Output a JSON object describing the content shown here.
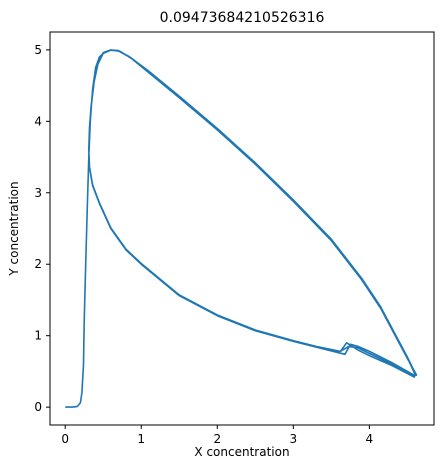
{
  "chart_data": {
    "type": "line",
    "title": "0.09473684210526316",
    "xlabel": "X concentration",
    "ylabel": "Y concentration",
    "xlim": [
      -0.2,
      4.85
    ],
    "ylim": [
      -0.25,
      5.25
    ],
    "x_ticks": [
      0,
      1,
      2,
      3,
      4
    ],
    "y_ticks": [
      0,
      1,
      2,
      3,
      4,
      5
    ],
    "grid": false,
    "legend": "none",
    "series_color": "#1f77b4",
    "series": [
      {
        "name": "",
        "points": [
          [
            0.0,
            0.0
          ],
          [
            0.1,
            0.0
          ],
          [
            0.16,
            0.01
          ],
          [
            0.2,
            0.06
          ],
          [
            0.22,
            0.2
          ],
          [
            0.24,
            0.6
          ],
          [
            0.25,
            1.2
          ],
          [
            0.27,
            2.0
          ],
          [
            0.29,
            2.8
          ],
          [
            0.31,
            3.5
          ],
          [
            0.33,
            4.0
          ],
          [
            0.36,
            4.45
          ],
          [
            0.4,
            4.75
          ],
          [
            0.45,
            4.9
          ],
          [
            0.52,
            4.97
          ],
          [
            0.6,
            5.0
          ],
          [
            0.7,
            4.99
          ],
          [
            0.85,
            4.9
          ],
          [
            1.1,
            4.7
          ],
          [
            1.5,
            4.35
          ],
          [
            2.0,
            3.9
          ],
          [
            2.5,
            3.42
          ],
          [
            3.0,
            2.9
          ],
          [
            3.5,
            2.35
          ],
          [
            3.9,
            1.8
          ],
          [
            4.15,
            1.4
          ],
          [
            4.35,
            1.0
          ],
          [
            4.5,
            0.7
          ],
          [
            4.6,
            0.48
          ],
          [
            4.58,
            0.43
          ],
          [
            4.3,
            0.6
          ],
          [
            4.0,
            0.75
          ],
          [
            3.85,
            0.83
          ],
          [
            3.73,
            0.85
          ],
          [
            3.6,
            0.77
          ],
          [
            3.3,
            0.84
          ],
          [
            3.0,
            0.92
          ],
          [
            2.5,
            1.07
          ],
          [
            2.0,
            1.28
          ],
          [
            1.5,
            1.56
          ],
          [
            1.0,
            2.0
          ],
          [
            0.8,
            2.2
          ],
          [
            0.6,
            2.5
          ],
          [
            0.45,
            2.85
          ],
          [
            0.36,
            3.1
          ],
          [
            0.32,
            3.35
          ],
          [
            0.31,
            3.6
          ],
          [
            0.32,
            3.9
          ],
          [
            0.34,
            4.2
          ],
          [
            0.38,
            4.55
          ],
          [
            0.43,
            4.8
          ],
          [
            0.5,
            4.95
          ],
          [
            0.6,
            4.995
          ],
          [
            0.7,
            4.985
          ],
          [
            0.86,
            4.89
          ],
          [
            1.1,
            4.69
          ],
          [
            1.5,
            4.34
          ],
          [
            2.0,
            3.89
          ],
          [
            2.5,
            3.41
          ],
          [
            3.0,
            2.89
          ],
          [
            3.5,
            2.34
          ],
          [
            3.9,
            1.79
          ],
          [
            4.15,
            1.39
          ],
          [
            4.35,
            0.99
          ],
          [
            4.5,
            0.69
          ],
          [
            4.6,
            0.46
          ],
          [
            4.59,
            0.42
          ],
          [
            4.3,
            0.58
          ],
          [
            4.0,
            0.72
          ],
          [
            3.85,
            0.8
          ],
          [
            3.7,
            0.9
          ],
          [
            3.62,
            0.78
          ],
          [
            3.3,
            0.85
          ],
          [
            3.0,
            0.93
          ],
          [
            2.5,
            1.08
          ],
          [
            2.0,
            1.29
          ],
          [
            1.5,
            1.57
          ],
          [
            1.0,
            2.01
          ],
          [
            0.8,
            2.21
          ],
          [
            0.6,
            2.51
          ],
          [
            0.45,
            2.86
          ],
          [
            0.36,
            3.11
          ],
          [
            0.32,
            3.36
          ],
          [
            0.31,
            3.61
          ],
          [
            0.32,
            3.91
          ],
          [
            0.34,
            4.21
          ],
          [
            0.38,
            4.56
          ],
          [
            0.43,
            4.81
          ],
          [
            0.5,
            4.96
          ],
          [
            0.6,
            5.0
          ],
          [
            0.72,
            4.98
          ],
          [
            0.87,
            4.88
          ],
          [
            1.1,
            4.68
          ],
          [
            1.5,
            4.33
          ],
          [
            2.0,
            3.88
          ],
          [
            2.5,
            3.4
          ],
          [
            3.0,
            2.88
          ],
          [
            3.5,
            2.33
          ],
          [
            3.9,
            1.78
          ],
          [
            4.15,
            1.38
          ],
          [
            4.35,
            0.98
          ],
          [
            4.5,
            0.68
          ],
          [
            4.62,
            0.45
          ],
          [
            4.6,
            0.44
          ],
          [
            4.3,
            0.62
          ],
          [
            4.0,
            0.78
          ],
          [
            3.85,
            0.85
          ],
          [
            3.75,
            0.88
          ],
          [
            3.68,
            0.74
          ],
          [
            3.3,
            0.84
          ],
          [
            3.0,
            0.92
          ],
          [
            2.5,
            1.07
          ],
          [
            2.0,
            1.28
          ],
          [
            1.5,
            1.56
          ],
          [
            1.0,
            2.0
          ],
          [
            0.8,
            2.2
          ],
          [
            0.6,
            2.5
          ],
          [
            0.45,
            2.85
          ],
          [
            0.36,
            3.1
          ],
          [
            0.32,
            3.35
          ],
          [
            0.31,
            3.6
          ],
          [
            0.32,
            3.9
          ]
        ]
      }
    ]
  }
}
